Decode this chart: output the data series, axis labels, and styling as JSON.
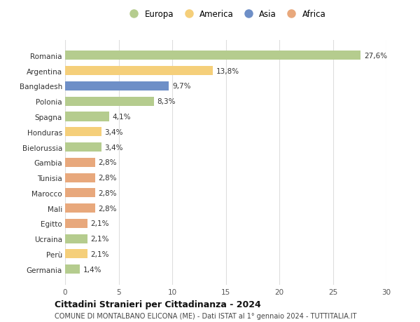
{
  "countries": [
    "Romania",
    "Argentina",
    "Bangladesh",
    "Polonia",
    "Spagna",
    "Honduras",
    "Bielorussia",
    "Gambia",
    "Tunisia",
    "Marocco",
    "Mali",
    "Egitto",
    "Ucraina",
    "Perù",
    "Germania"
  ],
  "values": [
    27.6,
    13.8,
    9.7,
    8.3,
    4.1,
    3.4,
    3.4,
    2.8,
    2.8,
    2.8,
    2.8,
    2.1,
    2.1,
    2.1,
    1.4
  ],
  "labels": [
    "27,6%",
    "13,8%",
    "9,7%",
    "8,3%",
    "4,1%",
    "3,4%",
    "3,4%",
    "2,8%",
    "2,8%",
    "2,8%",
    "2,8%",
    "2,1%",
    "2,1%",
    "2,1%",
    "1,4%"
  ],
  "continents": [
    "Europa",
    "America",
    "Asia",
    "Europa",
    "Europa",
    "America",
    "Europa",
    "Africa",
    "Africa",
    "Africa",
    "Africa",
    "Africa",
    "Europa",
    "America",
    "Europa"
  ],
  "colors": {
    "Europa": "#b5cc8e",
    "America": "#f5cf7a",
    "Asia": "#6e8fc7",
    "Africa": "#e8a87c"
  },
  "legend_order": [
    "Europa",
    "America",
    "Asia",
    "Africa"
  ],
  "title": "Cittadini Stranieri per Cittadinanza - 2024",
  "subtitle": "COMUNE DI MONTALBANO ELICONA (ME) - Dati ISTAT al 1° gennaio 2024 - TUTTITALIA.IT",
  "xlim": [
    0,
    30
  ],
  "xticks": [
    0,
    5,
    10,
    15,
    20,
    25,
    30
  ],
  "background_color": "#ffffff",
  "grid_color": "#dddddd",
  "label_fontsize": 7.5,
  "ytick_fontsize": 7.5,
  "xtick_fontsize": 7.5,
  "bar_height": 0.6
}
